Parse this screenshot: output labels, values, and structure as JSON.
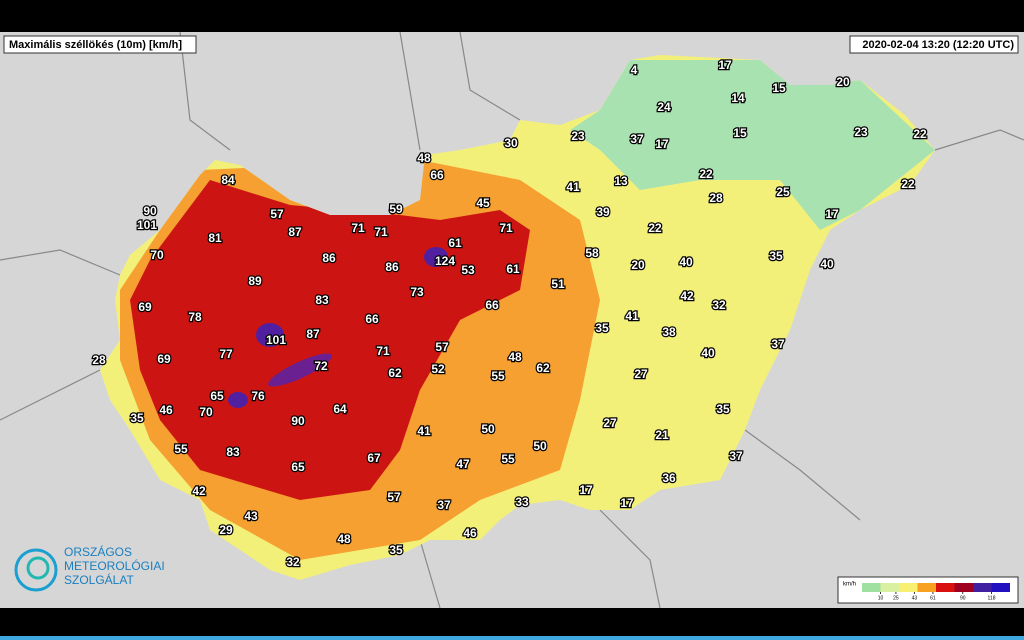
{
  "header": {
    "title": "Maximális széllökés (10m) [km/h]",
    "timestamp": "2020-02-04 13:20 (12:20 UTC)"
  },
  "logo": {
    "lines": [
      "ORSZÁGOS",
      "METEOROLÓGIAI",
      "SZOLGÁLAT"
    ]
  },
  "legend": {
    "unit": "km/h",
    "ticks": [
      10,
      25,
      43,
      61,
      90,
      118
    ],
    "colors": [
      "#9fe0a0",
      "#d8f0a0",
      "#f8f070",
      "#f8a020",
      "#d81010",
      "#a00020",
      "#4020a0",
      "#2010c0"
    ]
  },
  "stations": [
    84,
    90,
    101,
    57,
    87,
    71,
    71,
    59,
    48,
    66,
    45,
    30,
    61,
    71,
    124,
    53,
    61,
    81,
    70,
    86,
    86,
    89,
    73,
    83,
    69,
    78,
    66,
    87,
    101,
    66,
    51,
    58,
    57,
    77,
    69,
    71,
    72,
    62,
    52,
    48,
    55,
    62,
    28,
    65,
    76,
    70,
    46,
    35,
    90,
    64,
    41,
    50,
    50,
    55,
    47,
    67,
    55,
    83,
    65,
    42,
    57,
    37,
    33,
    43,
    29,
    48,
    46,
    35,
    32,
    4,
    17,
    14,
    15,
    20,
    24,
    23,
    37,
    17,
    15,
    23,
    22,
    22,
    13,
    41,
    39,
    28,
    25,
    22,
    17,
    22,
    20,
    40,
    35,
    40,
    42,
    32,
    41,
    35,
    38,
    40,
    37,
    27,
    35,
    27,
    21,
    37,
    36,
    17,
    17
  ]
}
